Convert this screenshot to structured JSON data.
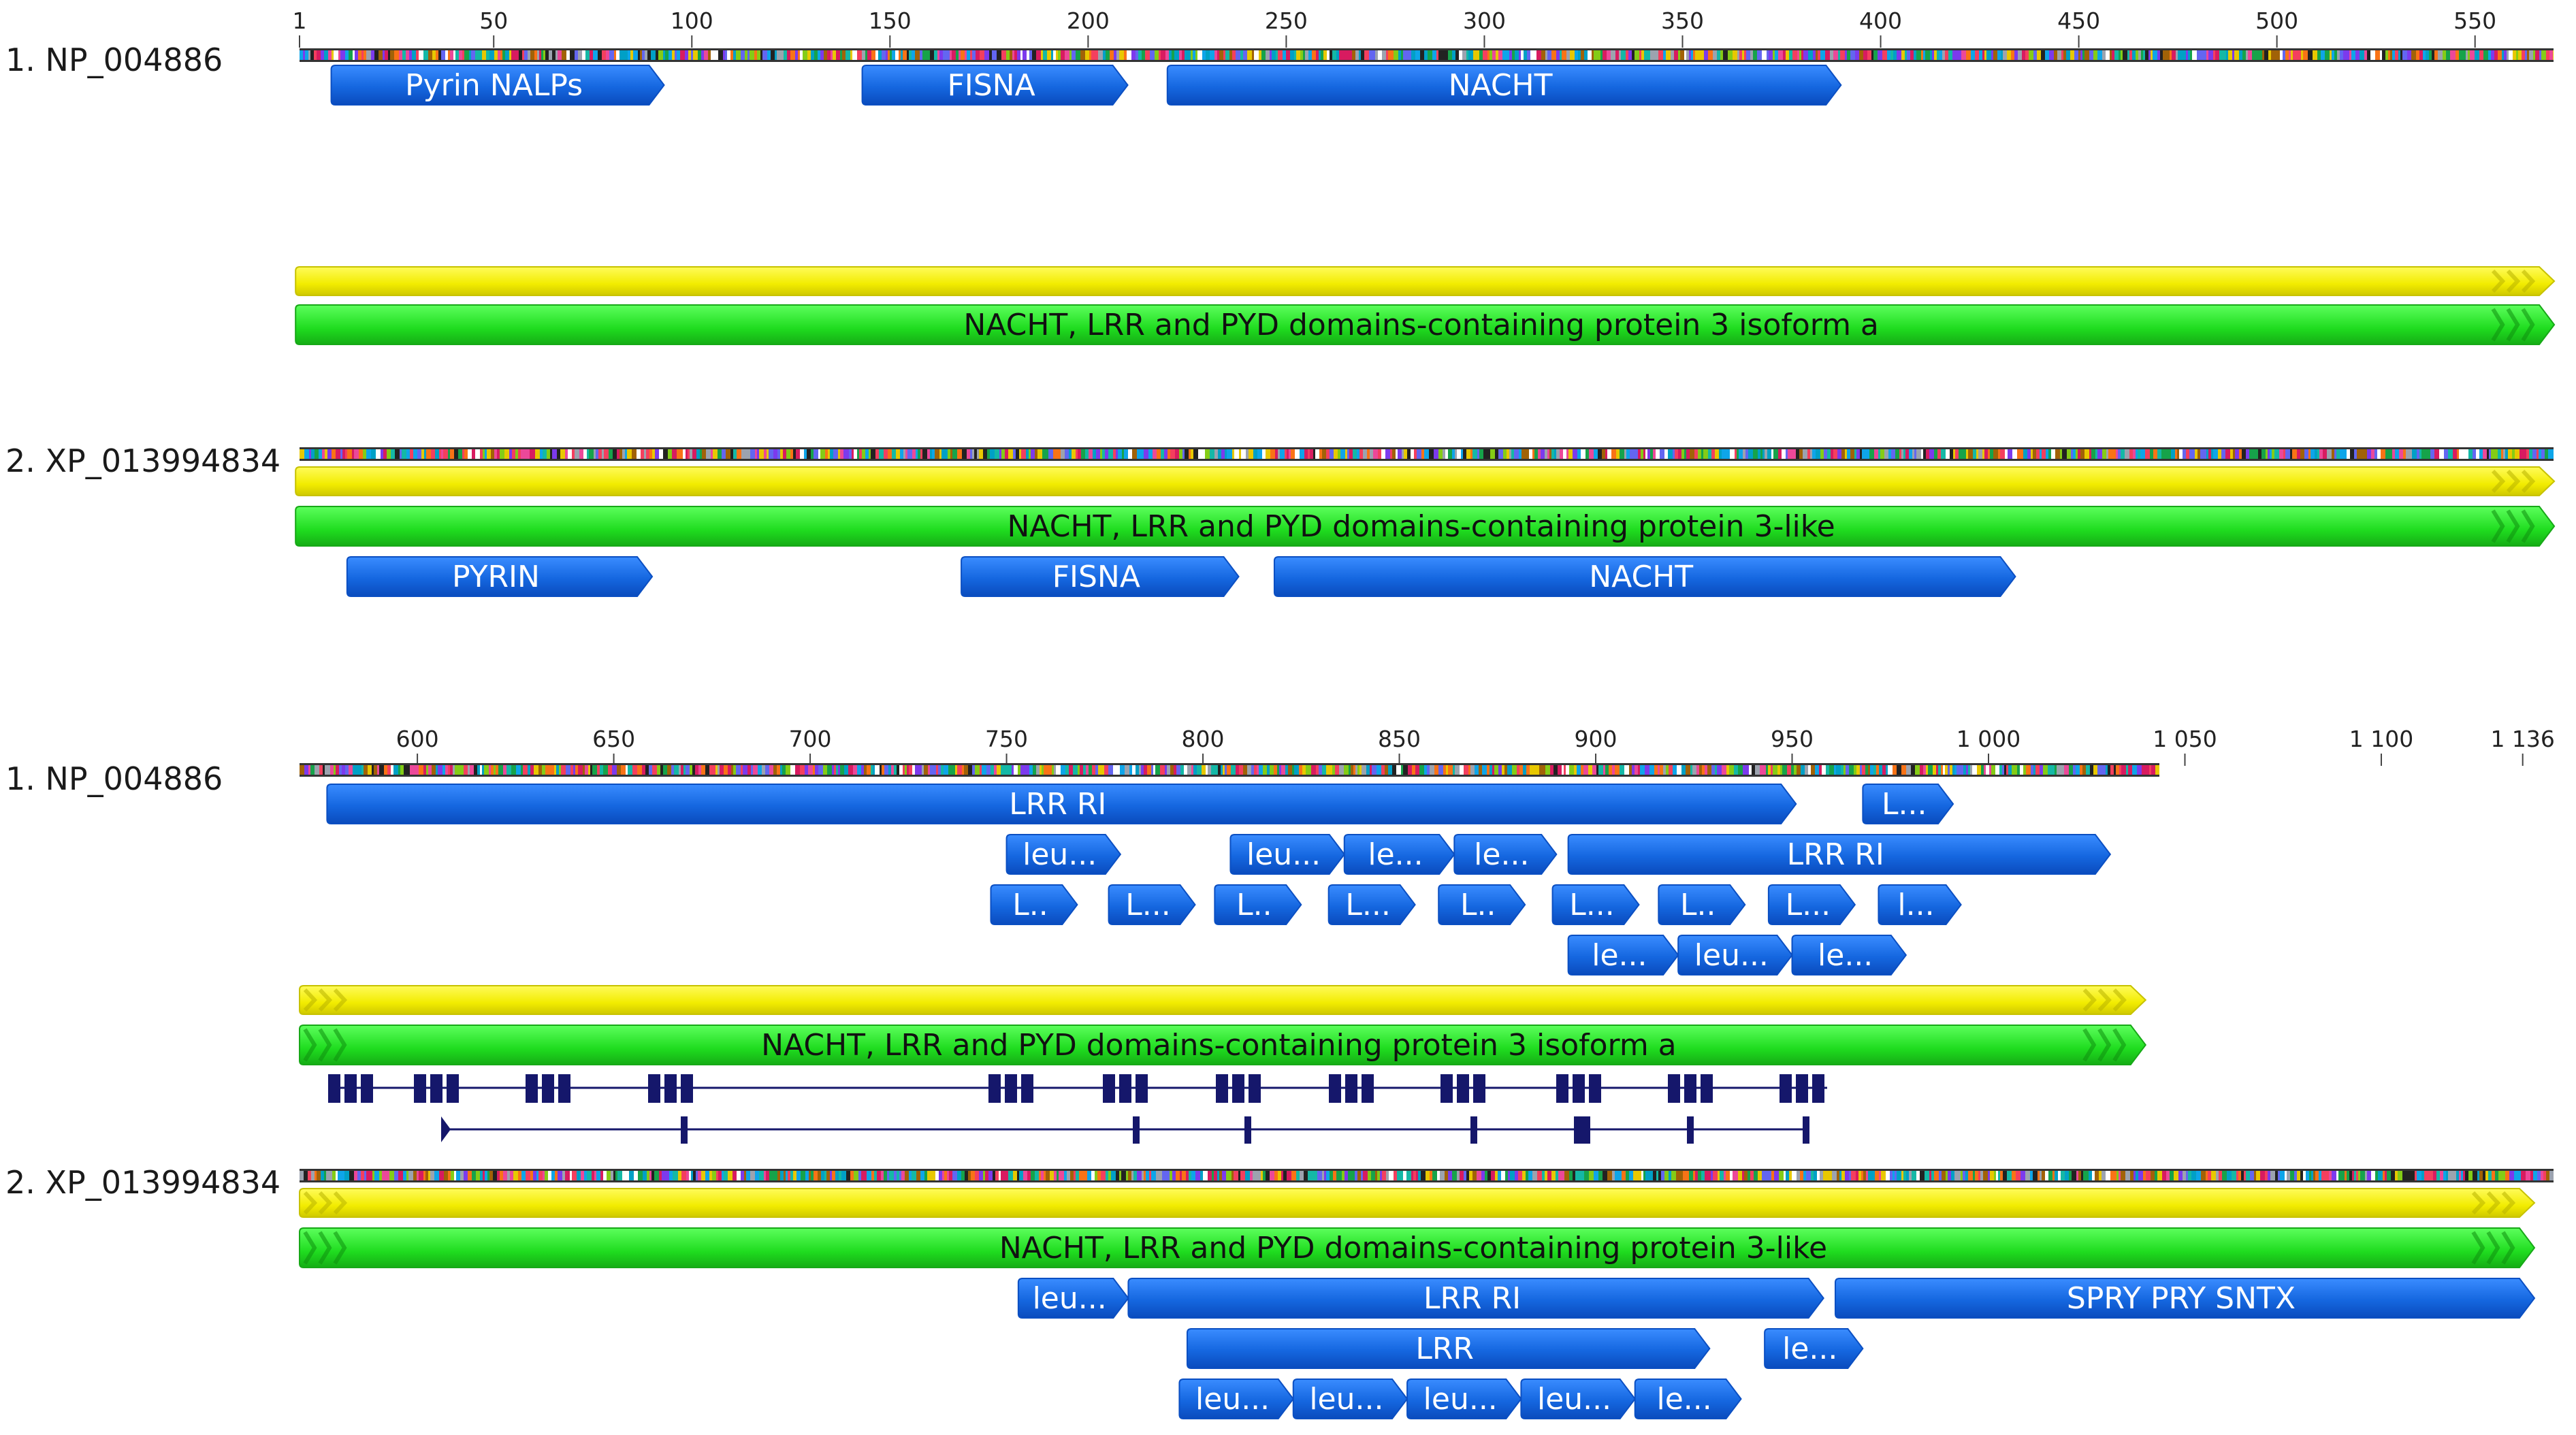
{
  "colors": {
    "domain_blue": "#1a6fe8",
    "domain_blue_dark": "#0b4fc2",
    "yellow": "#f5f000",
    "yellow_edge": "#c7c200",
    "green": "#22e022",
    "green_edge": "#17a817",
    "exon_navy": "#15176b",
    "ruler": "#555555"
  },
  "panels": [
    {
      "ruler": {
        "ticks": [
          {
            "pos": 1,
            "label": "1"
          },
          {
            "pos": 50,
            "label": "50"
          },
          {
            "pos": 100,
            "label": "100"
          },
          {
            "pos": 150,
            "label": "150"
          },
          {
            "pos": 200,
            "label": "200"
          },
          {
            "pos": 250,
            "label": "250"
          },
          {
            "pos": 300,
            "label": "300"
          },
          {
            "pos": 350,
            "label": "350"
          },
          {
            "pos": 400,
            "label": "400"
          },
          {
            "pos": 450,
            "label": "450"
          },
          {
            "pos": 500,
            "label": "500"
          },
          {
            "pos": 550,
            "label": "550"
          }
        ]
      },
      "rows": [
        {
          "id": "seq-1",
          "label": "1. NP_004886"
        },
        {
          "id": "seq-2",
          "label": "2. XP_013994834"
        }
      ],
      "tracks": [
        {
          "seq": "seq-1",
          "kind": "domain",
          "label": "Pyrin NALPs",
          "start": 9,
          "end": 93,
          "lane": 0
        },
        {
          "seq": "seq-1",
          "kind": "domain",
          "label": "FISNA",
          "start": 143,
          "end": 210,
          "lane": 0
        },
        {
          "seq": "seq-1",
          "kind": "domain",
          "label": "NACHT",
          "start": 220,
          "end": 390,
          "lane": 0
        },
        {
          "seq": "seq-1",
          "kind": "cds",
          "label": "",
          "start": 0,
          "end": 570,
          "lane": 4
        },
        {
          "seq": "seq-1",
          "kind": "protein",
          "label": "NACHT, LRR and PYD domains-containing protein 3 isoform a",
          "start": 0,
          "end": 570,
          "lane": 5
        },
        {
          "seq": "seq-2",
          "kind": "cds",
          "label": "",
          "start": 0,
          "end": 570,
          "lane": 0
        },
        {
          "seq": "seq-2",
          "kind": "protein",
          "label": "NACHT, LRR and PYD domains-containing protein 3-like",
          "start": 0,
          "end": 570,
          "lane": 1
        },
        {
          "seq": "seq-2",
          "kind": "domain",
          "label": "PYRIN",
          "start": 13,
          "end": 90,
          "lane": 2
        },
        {
          "seq": "seq-2",
          "kind": "domain",
          "label": "FISNA",
          "start": 168,
          "end": 238,
          "lane": 2
        },
        {
          "seq": "seq-2",
          "kind": "domain",
          "label": "NACHT",
          "start": 247,
          "end": 434,
          "lane": 2
        }
      ]
    },
    {
      "ruler": {
        "ticks": [
          {
            "pos": 600,
            "label": "600"
          },
          {
            "pos": 650,
            "label": "650"
          },
          {
            "pos": 700,
            "label": "700"
          },
          {
            "pos": 750,
            "label": "750"
          },
          {
            "pos": 800,
            "label": "800"
          },
          {
            "pos": 850,
            "label": "850"
          },
          {
            "pos": 900,
            "label": "900"
          },
          {
            "pos": 950,
            "label": "950"
          },
          {
            "pos": 1000,
            "label": "1 000"
          },
          {
            "pos": 1050,
            "label": "1 050"
          },
          {
            "pos": 1100,
            "label": "1 100"
          },
          {
            "pos": 1136,
            "label": "1 136"
          }
        ]
      },
      "rows": [
        {
          "id": "seq-1",
          "label": "1. NP_004886"
        },
        {
          "id": "seq-2",
          "label": "2. XP_013994834"
        }
      ],
      "tracks": [
        {
          "seq": "seq-1",
          "kind": "domain",
          "label": "LRR RI",
          "start": 577,
          "end": 951,
          "lane": 0
        },
        {
          "seq": "seq-1",
          "kind": "domain",
          "label": "L...",
          "start": 968,
          "end": 991,
          "lane": 0
        },
        {
          "seq": "seq-1",
          "kind": "domain",
          "label": "leu...",
          "start": 750,
          "end": 779,
          "lane": 1
        },
        {
          "seq": "seq-1",
          "kind": "domain",
          "label": "leu...",
          "start": 807,
          "end": 836,
          "lane": 1
        },
        {
          "seq": "seq-1",
          "kind": "domain",
          "label": "le...",
          "start": 836,
          "end": 864,
          "lane": 1
        },
        {
          "seq": "seq-1",
          "kind": "domain",
          "label": "le...",
          "start": 864,
          "end": 890,
          "lane": 1
        },
        {
          "seq": "seq-1",
          "kind": "domain",
          "label": "LRR RI",
          "start": 893,
          "end": 1031,
          "lane": 1
        },
        {
          "seq": "seq-1",
          "kind": "domain",
          "label": "L..",
          "start": 746,
          "end": 768,
          "lane": 2
        },
        {
          "seq": "seq-1",
          "kind": "domain",
          "label": "L...",
          "start": 776,
          "end": 798,
          "lane": 2
        },
        {
          "seq": "seq-1",
          "kind": "domain",
          "label": "L..",
          "start": 803,
          "end": 825,
          "lane": 2
        },
        {
          "seq": "seq-1",
          "kind": "domain",
          "label": "L...",
          "start": 832,
          "end": 854,
          "lane": 2
        },
        {
          "seq": "seq-1",
          "kind": "domain",
          "label": "L..",
          "start": 860,
          "end": 882,
          "lane": 2
        },
        {
          "seq": "seq-1",
          "kind": "domain",
          "label": "L...",
          "start": 889,
          "end": 911,
          "lane": 2
        },
        {
          "seq": "seq-1",
          "kind": "domain",
          "label": "L..",
          "start": 916,
          "end": 938,
          "lane": 2
        },
        {
          "seq": "seq-1",
          "kind": "domain",
          "label": "L...",
          "start": 944,
          "end": 966,
          "lane": 2
        },
        {
          "seq": "seq-1",
          "kind": "domain",
          "label": "l...",
          "start": 972,
          "end": 993,
          "lane": 2
        },
        {
          "seq": "seq-1",
          "kind": "domain",
          "label": "le...",
          "start": 893,
          "end": 921,
          "lane": 3
        },
        {
          "seq": "seq-1",
          "kind": "domain",
          "label": "leu...",
          "start": 921,
          "end": 950,
          "lane": 3
        },
        {
          "seq": "seq-1",
          "kind": "domain",
          "label": "le...",
          "start": 950,
          "end": 979,
          "lane": 3
        },
        {
          "seq": "seq-1",
          "kind": "cds",
          "label": "",
          "start": 570,
          "end": 1040,
          "lane": 4
        },
        {
          "seq": "seq-1",
          "kind": "protein",
          "label": "NACHT, LRR and PYD domains-containing protein 3 isoform a",
          "start": 570,
          "end": 1040,
          "lane": 5
        },
        {
          "seq": "seq-2",
          "kind": "cds",
          "label": "",
          "start": 570,
          "end": 1139,
          "lane": 0
        },
        {
          "seq": "seq-2",
          "kind": "protein",
          "label": "NACHT, LRR and PYD domains-containing protein 3-like",
          "start": 570,
          "end": 1139,
          "lane": 1
        },
        {
          "seq": "seq-2",
          "kind": "domain",
          "label": "leu...",
          "start": 753,
          "end": 781,
          "lane": 2
        },
        {
          "seq": "seq-2",
          "kind": "domain",
          "label": "LRR RI",
          "start": 781,
          "end": 958,
          "lane": 2
        },
        {
          "seq": "seq-2",
          "kind": "domain",
          "label": "SPRY PRY SNTX",
          "start": 961,
          "end": 1139,
          "lane": 2
        },
        {
          "seq": "seq-2",
          "kind": "domain",
          "label": "LRR",
          "start": 796,
          "end": 929,
          "lane": 3
        },
        {
          "seq": "seq-2",
          "kind": "domain",
          "label": "le...",
          "start": 943,
          "end": 968,
          "lane": 3
        },
        {
          "seq": "seq-2",
          "kind": "domain",
          "label": "leu...",
          "start": 794,
          "end": 823,
          "lane": 4
        },
        {
          "seq": "seq-2",
          "kind": "domain",
          "label": "leu...",
          "start": 823,
          "end": 852,
          "lane": 4
        },
        {
          "seq": "seq-2",
          "kind": "domain",
          "label": "leu...",
          "start": 852,
          "end": 881,
          "lane": 4
        },
        {
          "seq": "seq-2",
          "kind": "domain",
          "label": "leu...",
          "start": 881,
          "end": 910,
          "lane": 4
        },
        {
          "seq": "seq-2",
          "kind": "domain",
          "label": "le...",
          "start": 910,
          "end": 937,
          "lane": 4
        }
      ]
    }
  ]
}
